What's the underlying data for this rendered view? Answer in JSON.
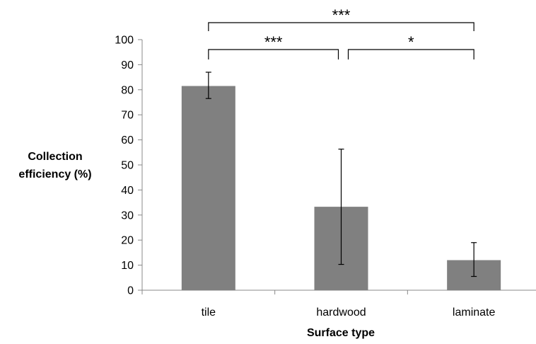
{
  "chart_data": {
    "type": "bar",
    "categories": [
      "tile",
      "hardwood",
      "laminate"
    ],
    "values": [
      81.5,
      33.3,
      12.0
    ],
    "error_low": [
      76.5,
      10.3,
      5.5
    ],
    "error_high": [
      87.0,
      56.3,
      19.0
    ],
    "ylabel_lines": [
      "Collection",
      "efficiency (%)"
    ],
    "xlabel": "Surface type",
    "ylim": [
      0,
      100
    ],
    "yticks": [
      0,
      10,
      20,
      30,
      40,
      50,
      60,
      70,
      80,
      90,
      100
    ],
    "grid": false,
    "bar_color": "#808080",
    "significance": [
      {
        "from": 0,
        "to": 2,
        "label": "***"
      },
      {
        "from": 0,
        "to": 1,
        "label": "***"
      },
      {
        "from": 1,
        "to": 2,
        "label": "*"
      }
    ]
  }
}
